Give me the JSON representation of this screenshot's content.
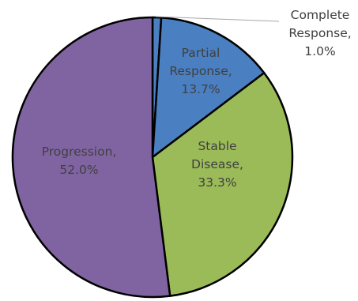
{
  "chart_data": {
    "type": "pie",
    "title": "",
    "slices": [
      {
        "label": "Complete Response",
        "value": 1.0,
        "value_label": "1.0%",
        "color": "#4a7fc1",
        "text_lines": [
          "Complete",
          "Response,",
          "1.0%"
        ]
      },
      {
        "label": "Partial Response",
        "value": 13.7,
        "value_label": "13.7%",
        "color": "#4a7fc1",
        "text_lines": [
          "Partial",
          "Response,",
          "13.7%"
        ]
      },
      {
        "label": "Stable Disease",
        "value": 33.3,
        "value_label": "33.3%",
        "color": "#9bbb59",
        "text_lines": [
          "Stable",
          "Disease,",
          "33.3%"
        ]
      },
      {
        "label": "Progression",
        "value": 52.0,
        "value_label": "52.0%",
        "color": "#8064a2",
        "text_lines": [
          "Progression,",
          "52.0%"
        ]
      }
    ],
    "start_angle": "top",
    "direction": "clockwise",
    "legend": "none",
    "data_labels": "category name and percentage"
  }
}
